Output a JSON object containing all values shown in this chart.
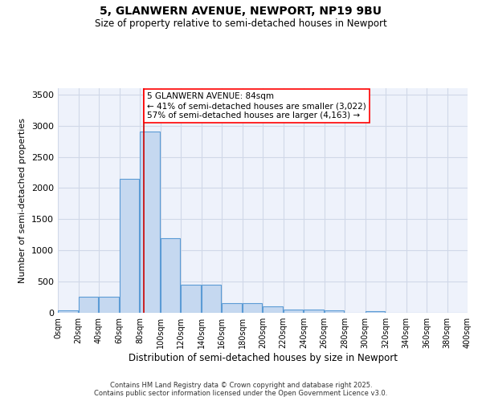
{
  "title1": "5, GLANWERN AVENUE, NEWPORT, NP19 9BU",
  "title2": "Size of property relative to semi-detached houses in Newport",
  "xlabel": "Distribution of semi-detached houses by size in Newport",
  "ylabel": "Number of semi-detached properties",
  "footer1": "Contains HM Land Registry data © Crown copyright and database right 2025.",
  "footer2": "Contains public sector information licensed under the Open Government Licence v3.0.",
  "annotation_title": "5 GLANWERN AVENUE: 84sqm",
  "annotation_line1": "← 41% of semi-detached houses are smaller (3,022)",
  "annotation_line2": "57% of semi-detached houses are larger (4,163) →",
  "property_size": 84,
  "bin_edges": [
    0,
    20,
    40,
    60,
    80,
    100,
    120,
    140,
    160,
    180,
    200,
    220,
    240,
    260,
    280,
    300,
    320,
    340,
    360,
    380,
    400
  ],
  "bar_values": [
    40,
    260,
    260,
    2150,
    2900,
    1200,
    450,
    450,
    160,
    160,
    100,
    50,
    50,
    40,
    0,
    30,
    0,
    0,
    0,
    0
  ],
  "bar_color": "#c5d8f0",
  "bar_edge_color": "#5b9bd5",
  "grid_color": "#d0d8e8",
  "background_color": "#eef2fb",
  "vline_color": "#cc0000",
  "ylim": [
    0,
    3600
  ],
  "yticks": [
    0,
    500,
    1000,
    1500,
    2000,
    2500,
    3000,
    3500
  ]
}
